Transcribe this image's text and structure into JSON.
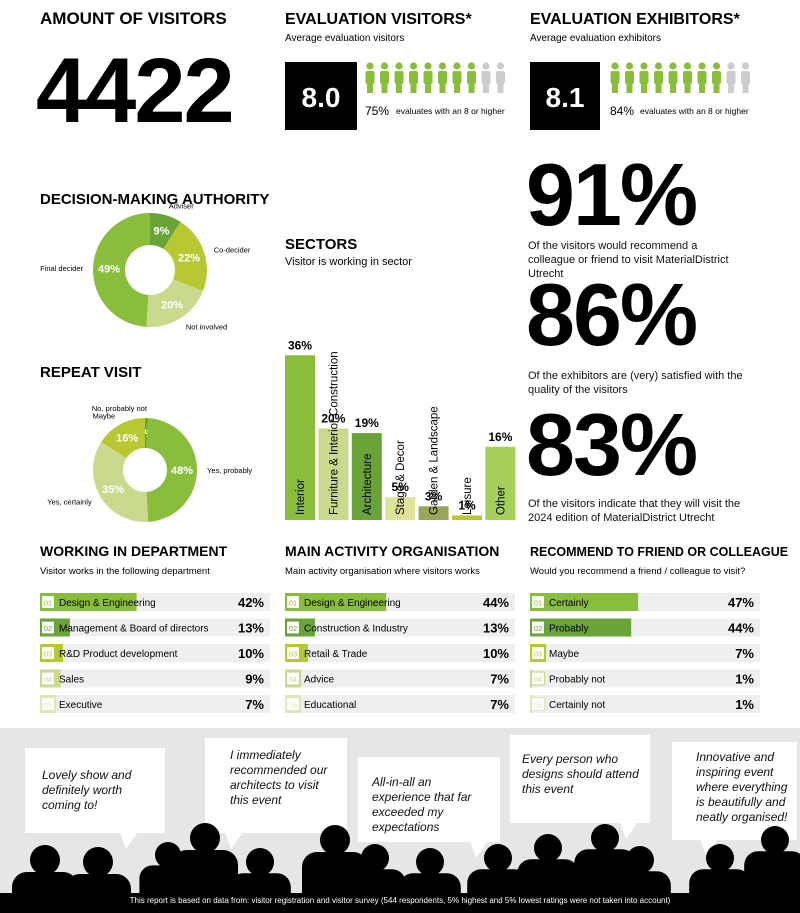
{
  "visitors": {
    "title": "AMOUNT OF VISITORS",
    "value": 4422
  },
  "evaluation_visitors": {
    "title": "EVALUATION VISITORS*",
    "subtitle": "Average evaluation visitors",
    "score": "8.0",
    "percent": "75%",
    "note": "evaluates with an 8 or higher"
  },
  "evaluation_exhibitors": {
    "title": "EVALUATION EXHIBITORS*",
    "subtitle": "Average evaluation exhibitors",
    "score": "8.1",
    "percent": "84%",
    "note": "evaluates with an 8 or higher"
  },
  "stats": [
    {
      "value": "91%",
      "text": "Of the visitors would recommend a colleague or friend to visit MaterialDistrict Utrecht"
    },
    {
      "value": "86%",
      "text": "Of the exhibitors are (very) satisfied with the quality of the visitors"
    },
    {
      "value": "83%",
      "text": "Of the visitors indicate that they will visit the 2024 edition of MaterialDistrict Utrecht"
    }
  ],
  "chart_data": [
    {
      "type": "donut",
      "title": "DECISION-MAKING AUTHORITY",
      "categories": [
        "Adviser",
        "Co-decider",
        "Not involved",
        "Final decider"
      ],
      "values": [
        9,
        22,
        20,
        49
      ],
      "value_labels": [
        "9%",
        "22%",
        "20%",
        "49%"
      ],
      "colors": [
        "#6aa338",
        "#b8c833",
        "#c9d98e",
        "#8bbd3d"
      ]
    },
    {
      "type": "donut",
      "title": "REPEAT VISIT",
      "categories": [
        "No, probably not",
        "Yes, probably",
        "Yes, certainly",
        "Maybe"
      ],
      "values": [
        1,
        48,
        35,
        16
      ],
      "value_labels": [
        "1%",
        "48%",
        "35%",
        "16%"
      ],
      "colors": [
        "#6aa338",
        "#8bbd3d",
        "#c9d98e",
        "#b8c833"
      ]
    },
    {
      "type": "bar",
      "title": "SECTORS",
      "subtitle": "Visitor is working in sector",
      "categories": [
        "Interior",
        "Furniture & Interior Construction",
        "Architecture",
        "Stage & Decor",
        "Garden & Landscape",
        "Leisure",
        "Other"
      ],
      "values": [
        36,
        20,
        19,
        5,
        3,
        1,
        16
      ],
      "value_labels": [
        "36%",
        "20%",
        "19%",
        "5%",
        "3%",
        "1%",
        "16%"
      ],
      "colors": [
        "#8bbd3d",
        "#c9d98e",
        "#6aa338",
        "#dfe39a",
        "#9aa55a",
        "#b8c833",
        "#a3cf5a"
      ],
      "ylim": [
        0,
        40
      ]
    },
    {
      "type": "hbar",
      "title": "WORKING IN DEPARTMENT",
      "subtitle": "Visitor works in the following department",
      "ranks": [
        "01",
        "02",
        "03",
        "04",
        "05"
      ],
      "categories": [
        "Design & Engineering",
        "Management & Board of directors",
        "R&D Product development",
        "Sales",
        "Executive"
      ],
      "values": [
        42,
        13,
        10,
        9,
        7
      ],
      "value_labels": [
        "42%",
        "13%",
        "10%",
        "9%",
        "7%"
      ],
      "colors": [
        "#8bbd3d",
        "#6aa338",
        "#b8c833",
        "#c9d98e",
        "#dde8b8"
      ],
      "xlim": [
        0,
        100
      ]
    },
    {
      "type": "hbar",
      "title": "MAIN ACTIVITY ORGANISATION",
      "subtitle": "Main activity organisation where visitors works",
      "ranks": [
        "01",
        "02",
        "03",
        "04",
        "05"
      ],
      "categories": [
        "Design & Engineering",
        "Construction & Industry",
        "Retail & Trade",
        "Advice",
        "Educational"
      ],
      "values": [
        44,
        13,
        10,
        7,
        7
      ],
      "value_labels": [
        "44%",
        "13%",
        "10%",
        "7%",
        "7%"
      ],
      "colors": [
        "#8bbd3d",
        "#6aa338",
        "#b8c833",
        "#c9d98e",
        "#dde8b8"
      ],
      "xlim": [
        0,
        100
      ]
    },
    {
      "type": "hbar",
      "title": "RECOMMEND TO FRIEND OR COLLEAGUE",
      "subtitle": "Would you recommend a friend / colleague to visit?",
      "ranks": [
        "01",
        "02",
        "03",
        "04",
        "05"
      ],
      "categories": [
        "Certainly",
        "Probably",
        "Maybe",
        "Probably not",
        "Certainly not"
      ],
      "values": [
        47,
        44,
        7,
        1,
        1
      ],
      "value_labels": [
        "47%",
        "44%",
        "7%",
        "1%",
        "1%"
      ],
      "colors": [
        "#8bbd3d",
        "#6aa338",
        "#b8c833",
        "#c9d98e",
        "#dde8b8"
      ],
      "xlim": [
        0,
        100
      ]
    }
  ],
  "testimonials": [
    "Lovely show and definitely worth coming to!",
    "I immediately recommended our architects to visit this event",
    "All-in-all an experience that far exceeded my expectations",
    "Every person who designs should attend this event",
    "Innovative and inspiring event where everything is beautifully and neatly organised!"
  ],
  "footer": "This report is based on data from: visitor registration and visitor survey (544 respondents, 5% highest and 5% lowest ratings were not taken into account)"
}
